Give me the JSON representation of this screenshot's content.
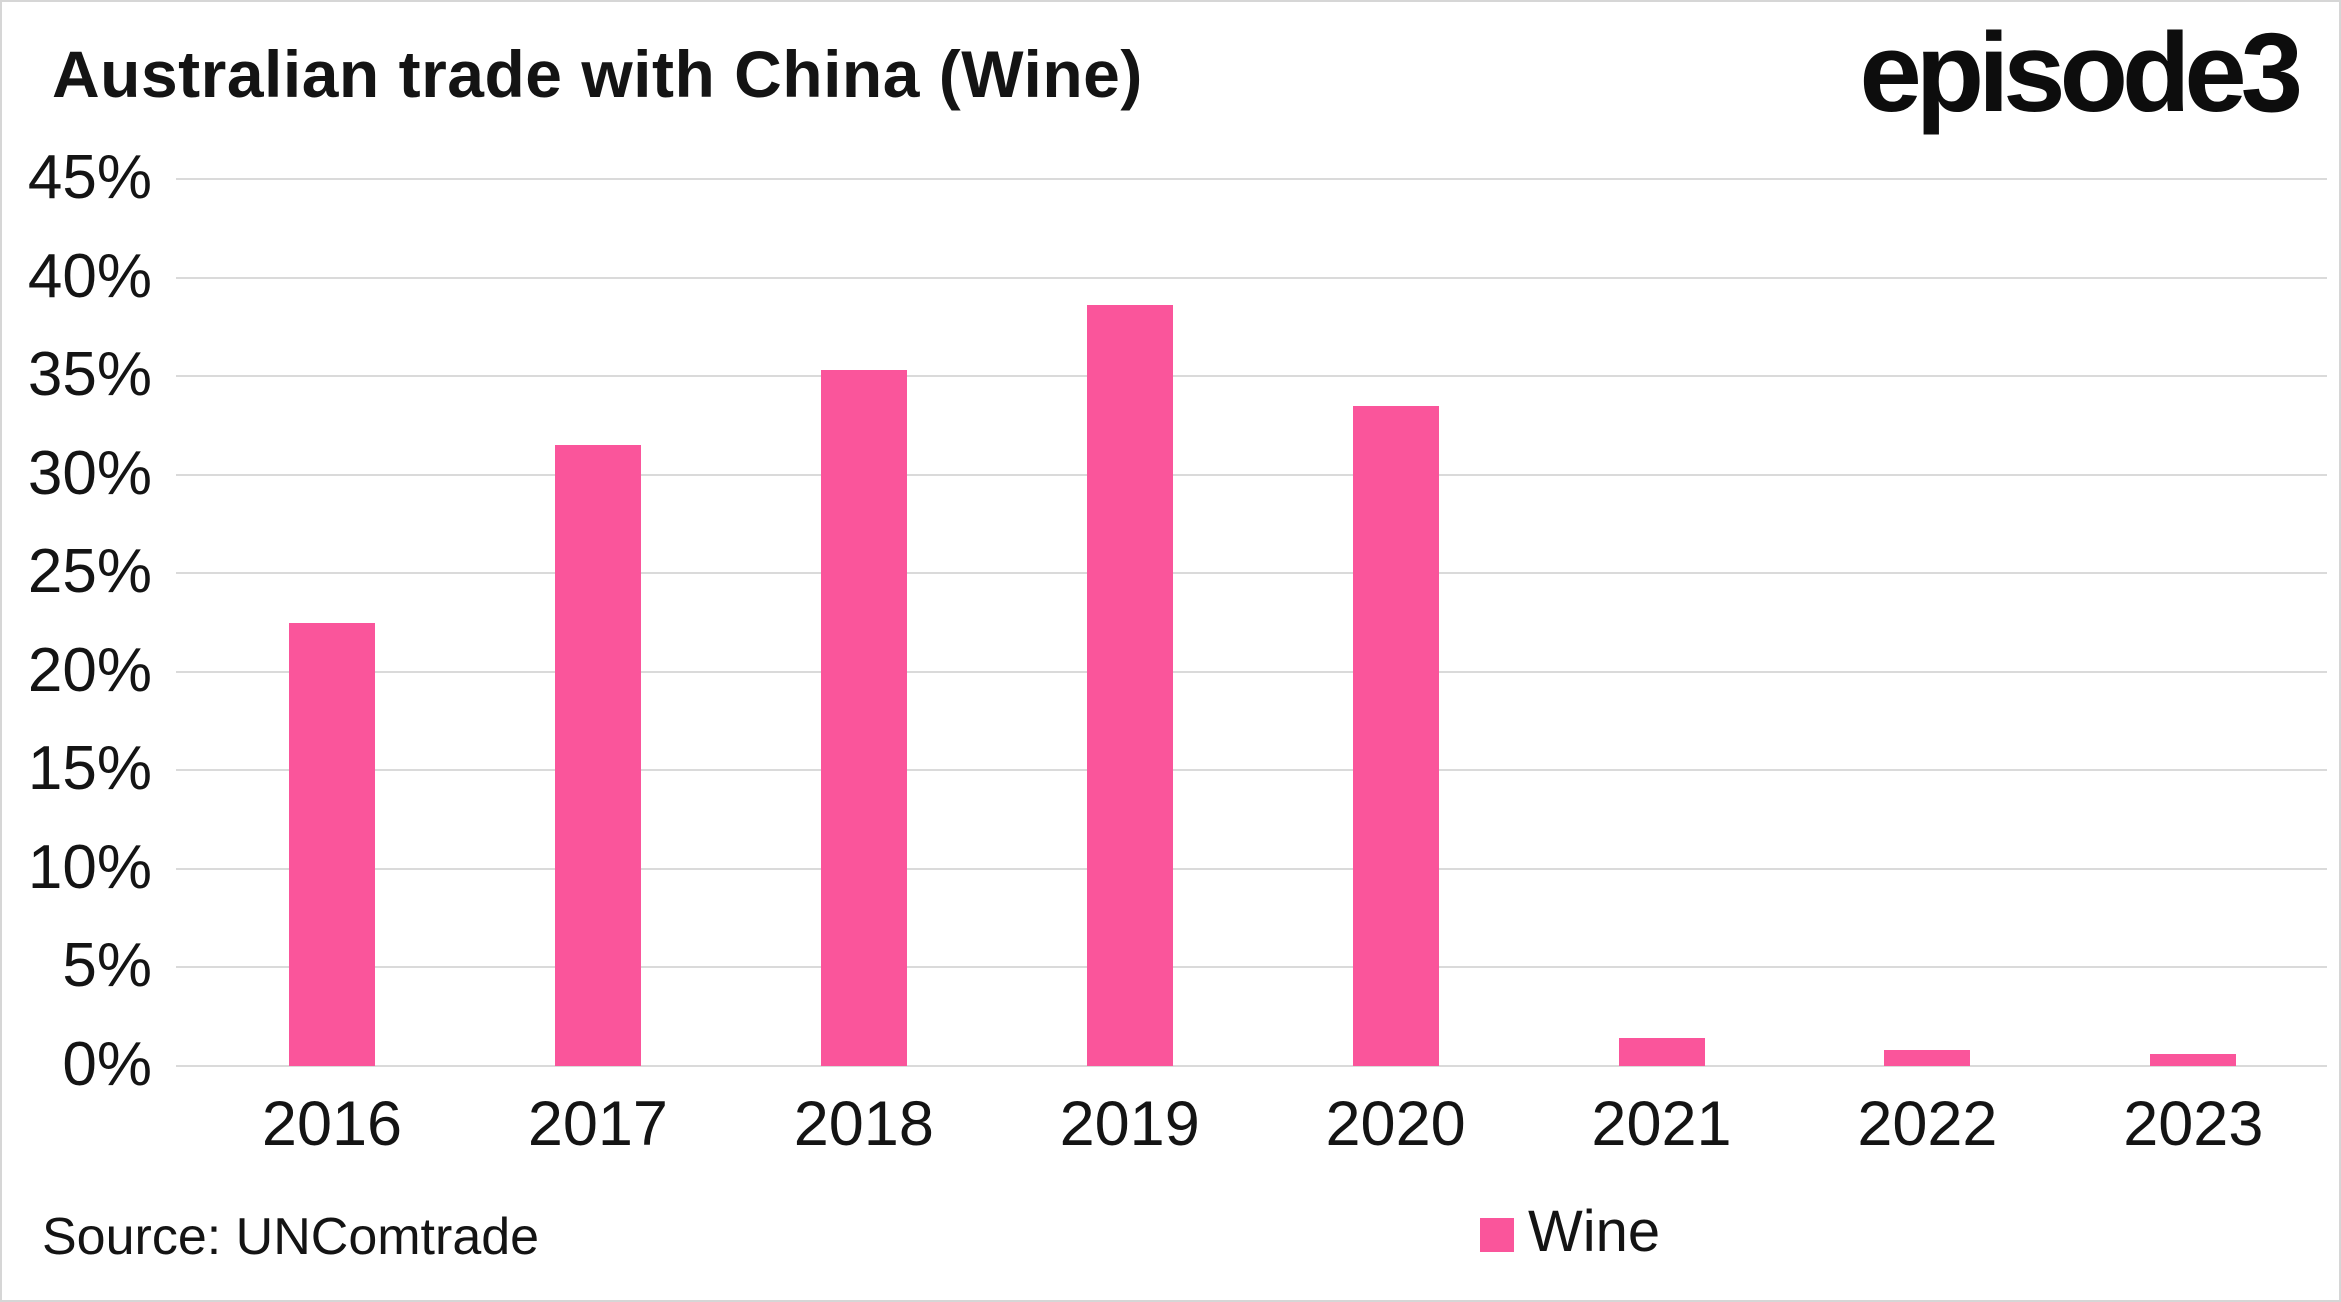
{
  "page": {
    "title": "Australian trade with China (Wine)",
    "logo_text": "episode3",
    "source": "Source: UNComtrade"
  },
  "legend": {
    "items": [
      {
        "label": "Wine",
        "color": "#fa559b"
      }
    ]
  },
  "chart_data": {
    "type": "bar",
    "title": "Australian trade with China (Wine)",
    "categories": [
      "2016",
      "2017",
      "2018",
      "2019",
      "2020",
      "2021",
      "2022",
      "2023"
    ],
    "series": [
      {
        "name": "Wine",
        "values": [
          22.5,
          31.5,
          35.3,
          38.6,
          33.5,
          1.4,
          0.8,
          0.6
        ]
      }
    ],
    "xlabel": "",
    "ylabel": "",
    "ylim": [
      0,
      45
    ],
    "ytick_step": 5,
    "ytick_suffix": "%",
    "grid": true,
    "legend_position": "bottom",
    "bar_color": "#fa559b",
    "gridline_color": "#dadada",
    "text_color": "#141414"
  }
}
